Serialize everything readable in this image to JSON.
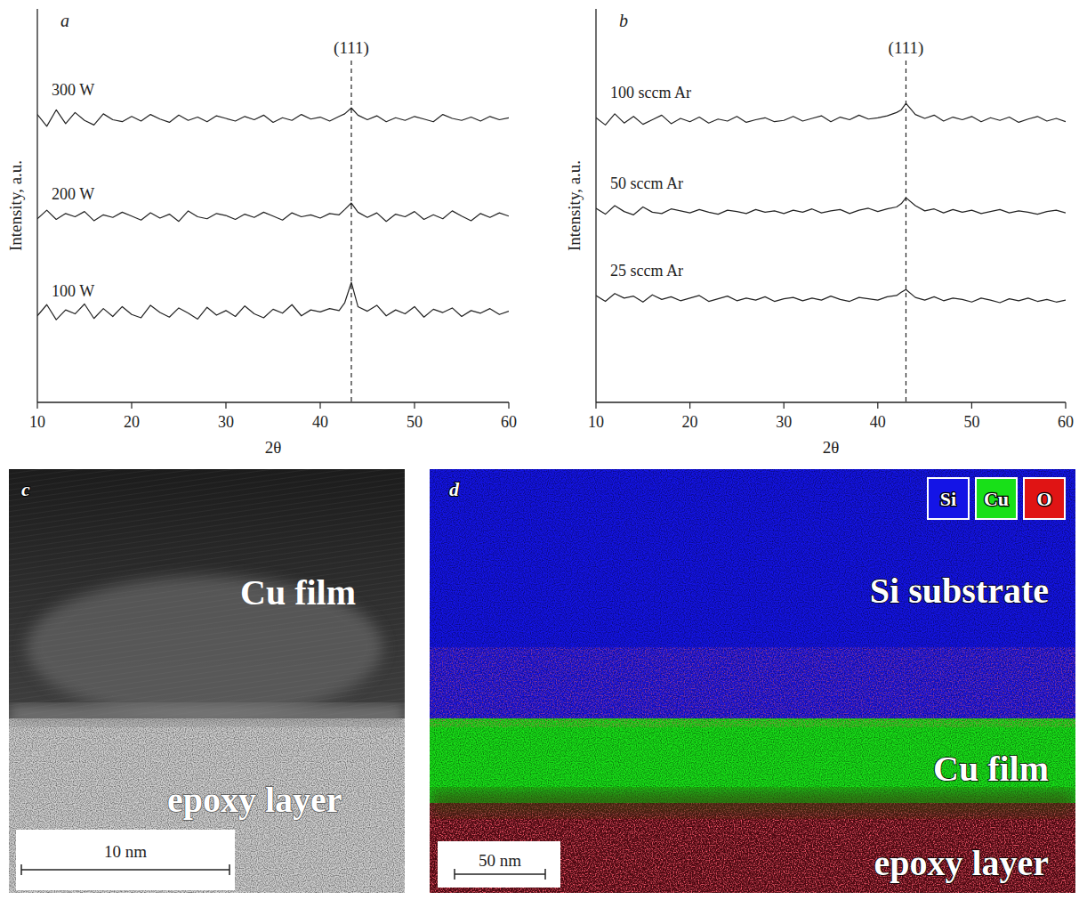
{
  "chart_data": [
    {
      "type": "line",
      "title": "a",
      "xlabel": "2θ",
      "ylabel": "Intensity, a.u.",
      "x": [
        10,
        11,
        12,
        13,
        14,
        15,
        16,
        17,
        18,
        19,
        20,
        21,
        22,
        23,
        24,
        25,
        26,
        27,
        28,
        29,
        30,
        31,
        32,
        33,
        34,
        35,
        36,
        37,
        38,
        39,
        40,
        41,
        42,
        42.6,
        43.3,
        44,
        45,
        46,
        47,
        48,
        49,
        50,
        51,
        52,
        53,
        54,
        55,
        56,
        57,
        58,
        59,
        60
      ],
      "xlim": [
        10,
        60
      ],
      "xticks": [
        10,
        20,
        30,
        40,
        50,
        60
      ],
      "ylim": [
        0,
        60
      ],
      "yticks": [],
      "tick_labels": "x",
      "grid": false,
      "annotations": [
        {
          "text": "(111)",
          "x": 43.3
        }
      ],
      "series": [
        {
          "name": "300 W",
          "color": "#222222",
          "values": [
            43.9,
            42.1,
            44.6,
            42.5,
            44.2,
            43.0,
            42.3,
            44.0,
            43.1,
            42.8,
            43.6,
            42.9,
            43.9,
            43.2,
            42.7,
            43.8,
            43.0,
            43.5,
            42.8,
            43.7,
            43.3,
            42.9,
            43.6,
            43.1,
            43.8,
            42.7,
            43.4,
            43.0,
            43.9,
            43.2,
            43.5,
            42.9,
            43.6,
            44.0,
            44.9,
            43.8,
            43.1,
            43.7,
            42.8,
            43.4,
            43.0,
            43.6,
            43.2,
            42.8,
            43.9,
            43.3,
            43.0,
            43.5,
            42.9,
            43.6,
            43.1,
            43.4
          ]
        },
        {
          "name": "200 W",
          "color": "#222222",
          "values": [
            28.0,
            29.3,
            27.9,
            28.8,
            28.3,
            29.1,
            27.7,
            28.6,
            28.2,
            29.0,
            28.4,
            27.8,
            28.9,
            28.1,
            28.7,
            27.6,
            29.2,
            28.3,
            28.0,
            28.8,
            28.5,
            27.9,
            28.7,
            28.2,
            29.0,
            28.4,
            27.8,
            28.9,
            28.3,
            28.6,
            28.1,
            28.8,
            28.6,
            29.4,
            30.4,
            29.0,
            28.2,
            28.9,
            27.6,
            28.7,
            28.3,
            29.1,
            27.9,
            28.6,
            28.0,
            29.2,
            28.4,
            27.7,
            28.8,
            28.2,
            28.9,
            28.4
          ]
        },
        {
          "name": "100 W",
          "color": "#222222",
          "values": [
            13.2,
            14.9,
            12.6,
            14.1,
            13.5,
            15.0,
            12.8,
            14.3,
            13.1,
            14.6,
            13.4,
            12.9,
            14.8,
            13.7,
            13.0,
            14.4,
            13.6,
            12.7,
            14.5,
            13.3,
            14.0,
            13.1,
            14.7,
            13.5,
            12.9,
            14.2,
            13.6,
            14.9,
            13.2,
            14.1,
            13.8,
            14.3,
            14.0,
            15.2,
            18.3,
            14.6,
            13.9,
            14.8,
            13.2,
            14.1,
            13.5,
            14.6,
            13.0,
            14.2,
            13.7,
            14.4,
            13.1,
            14.0,
            13.6,
            14.3,
            13.4,
            13.9
          ]
        }
      ]
    },
    {
      "type": "line",
      "title": "b",
      "xlabel": "2θ",
      "ylabel": "Intensity, a.u.",
      "x": [
        10,
        11,
        12,
        13,
        14,
        15,
        16,
        17,
        18,
        19,
        20,
        21,
        22,
        23,
        24,
        25,
        26,
        27,
        28,
        29,
        30,
        31,
        32,
        33,
        34,
        35,
        36,
        37,
        38,
        39,
        40,
        41,
        42,
        42.5,
        43.0,
        44,
        45,
        46,
        47,
        48,
        49,
        50,
        51,
        52,
        53,
        54,
        55,
        56,
        57,
        58,
        59,
        60
      ],
      "xlim": [
        10,
        60
      ],
      "xticks": [
        10,
        20,
        30,
        40,
        50,
        60
      ],
      "ylim": [
        0,
        60
      ],
      "yticks": [],
      "tick_labels": "x",
      "grid": false,
      "annotations": [
        {
          "text": "(111)",
          "x": 43.0
        }
      ],
      "series": [
        {
          "name": "100 sccm Ar",
          "color": "#222222",
          "values": [
            43.4,
            42.3,
            44.0,
            42.6,
            43.6,
            42.4,
            43.1,
            43.8,
            42.5,
            43.3,
            42.8,
            43.5,
            42.6,
            43.2,
            42.9,
            43.6,
            42.7,
            43.1,
            43.4,
            42.8,
            43.0,
            43.6,
            42.9,
            43.3,
            43.7,
            42.8,
            43.5,
            43.1,
            43.8,
            43.2,
            43.4,
            43.7,
            44.2,
            44.6,
            45.6,
            43.9,
            43.3,
            43.8,
            42.9,
            43.5,
            43.1,
            43.6,
            42.8,
            43.4,
            43.0,
            43.5,
            42.7,
            43.2,
            43.6,
            42.9,
            43.3,
            42.8
          ]
        },
        {
          "name": "50 sccm Ar",
          "color": "#222222",
          "values": [
            29.6,
            28.7,
            30.0,
            29.1,
            28.6,
            29.8,
            29.0,
            28.8,
            29.5,
            29.2,
            28.9,
            29.4,
            29.0,
            28.7,
            29.3,
            29.1,
            28.8,
            29.4,
            29.0,
            29.2,
            28.8,
            29.3,
            29.0,
            29.5,
            28.9,
            29.2,
            29.4,
            28.8,
            29.3,
            29.6,
            29.1,
            29.5,
            29.8,
            30.3,
            31.2,
            30.0,
            29.2,
            29.5,
            28.9,
            29.4,
            29.0,
            29.3,
            28.8,
            29.1,
            29.4,
            28.9,
            29.2,
            29.0,
            28.7,
            29.1,
            29.3,
            28.9
          ]
        },
        {
          "name": "25 sccm Ar",
          "color": "#222222",
          "values": [
            16.3,
            15.4,
            16.6,
            15.9,
            16.2,
            15.3,
            16.4,
            15.7,
            16.1,
            15.5,
            15.9,
            16.3,
            15.4,
            15.8,
            16.2,
            15.5,
            15.9,
            15.6,
            16.1,
            15.4,
            15.8,
            16.0,
            15.5,
            15.9,
            15.6,
            16.2,
            15.7,
            15.4,
            16.0,
            15.8,
            15.6,
            16.1,
            16.3,
            16.8,
            17.2,
            16.0,
            15.6,
            16.1,
            15.5,
            15.9,
            15.7,
            15.3,
            15.9,
            15.6,
            15.2,
            15.8,
            15.5,
            15.9,
            15.4,
            15.7,
            15.3,
            15.6
          ]
        }
      ]
    }
  ],
  "images": [
    {
      "letter": "c",
      "labels": [
        "Cu film",
        "epoxy layer"
      ],
      "scale_bar": "10 nm"
    },
    {
      "letter": "d",
      "labels": [
        "Si substrate",
        "Cu film",
        "epoxy layer"
      ],
      "scale_bar": "50 nm",
      "legend": [
        {
          "name": "Si",
          "color": "#1414e6"
        },
        {
          "name": "Cu",
          "color": "#18e018"
        },
        {
          "name": "O",
          "color": "#e01414"
        }
      ]
    }
  ]
}
